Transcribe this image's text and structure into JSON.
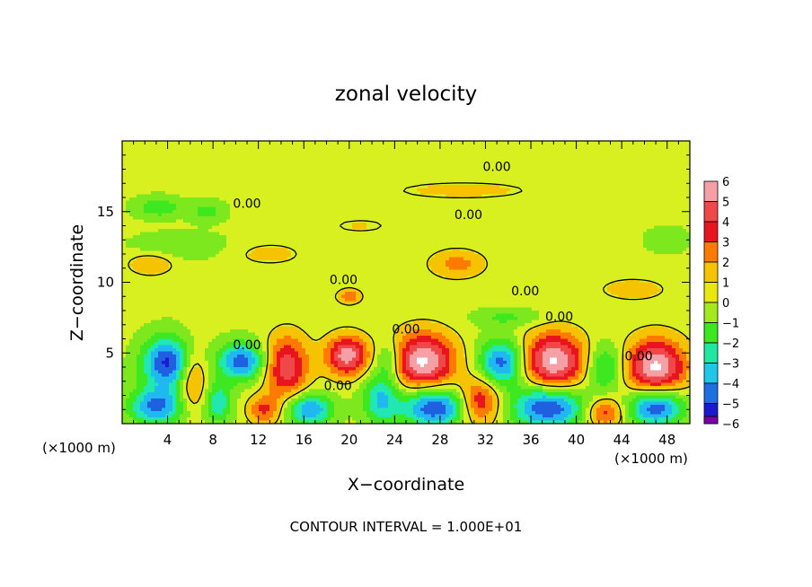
{
  "chart_data": {
    "type": "heatmap",
    "title": "zonal velocity",
    "xlabel": "X−coordinate",
    "ylabel": "Z−coordinate",
    "x_unit_left": "(×1000 m)",
    "x_unit_right": "(×1000 m)",
    "xlim": [
      0,
      50
    ],
    "ylim": [
      0,
      20
    ],
    "x_ticks": [
      4,
      8,
      12,
      16,
      20,
      24,
      28,
      32,
      36,
      40,
      44,
      48
    ],
    "x_tick_labels": [
      "4",
      "8",
      "12",
      "16",
      "20",
      "24",
      "28",
      "32",
      "36",
      "40",
      "44",
      "48"
    ],
    "y_ticks": [
      5,
      10,
      15
    ],
    "y_tick_labels": [
      "5",
      "10",
      "15"
    ],
    "colorbar": {
      "levels": [
        6,
        5,
        4,
        3,
        2,
        1,
        0,
        -1,
        -2,
        -3,
        -4,
        -5,
        -6
      ],
      "labels": [
        "6",
        "5",
        "4",
        "3",
        "2",
        "1",
        "0",
        "−1",
        "−2",
        "−3",
        "−4",
        "−5",
        "−6"
      ],
      "colors": [
        "#f4a0a6",
        "#f04848",
        "#e8141e",
        "#ff7a00",
        "#f5c300",
        "#e8e810",
        "#a4e81e",
        "#3ee820",
        "#20e8a0",
        "#20c8e8",
        "#1e70e0",
        "#1a1ad0",
        "#2000a0",
        "#7a00a8"
      ]
    },
    "contour_labels": [
      {
        "text": "0.00",
        "x": 33,
        "z": 18.2
      },
      {
        "text": "0.00",
        "x": 11,
        "z": 15.6
      },
      {
        "text": "0.00",
        "x": 30.5,
        "z": 14.8
      },
      {
        "text": "0.00",
        "x": 19.5,
        "z": 10.2
      },
      {
        "text": "0.00",
        "x": 35.5,
        "z": 9.4
      },
      {
        "text": "0.00",
        "x": 38.5,
        "z": 7.6
      },
      {
        "text": "0.00",
        "x": 25,
        "z": 6.7
      },
      {
        "text": "0.00",
        "x": 11,
        "z": 5.6
      },
      {
        "text": "0.00",
        "x": 19,
        "z": 2.7
      },
      {
        "text": "0.00",
        "x": 45.5,
        "z": 4.8
      }
    ],
    "features": [
      {
        "x": 4,
        "z": 4.3,
        "rx": 2.2,
        "rz": 1.8,
        "v": -5.5
      },
      {
        "x": 3,
        "z": 1.2,
        "rx": 2.4,
        "rz": 1.3,
        "v": -4.5
      },
      {
        "x": 6.2,
        "z": 3.2,
        "rx": 1.2,
        "rz": 2.2,
        "v": 3
      },
      {
        "x": 10.5,
        "z": 4.4,
        "rx": 2.0,
        "rz": 1.3,
        "v": -5
      },
      {
        "x": 14.5,
        "z": 4.0,
        "rx": 1.9,
        "rz": 2.2,
        "v": 4.5
      },
      {
        "x": 16.5,
        "z": 1.0,
        "rx": 2.0,
        "rz": 1.1,
        "v": -4.5
      },
      {
        "x": 19.8,
        "z": 4.8,
        "rx": 1.8,
        "rz": 1.4,
        "v": 5.5
      },
      {
        "x": 12.5,
        "z": 1.0,
        "rx": 1.4,
        "rz": 1.0,
        "v": 3
      },
      {
        "x": 22.8,
        "z": 1.8,
        "rx": 1.6,
        "rz": 1.8,
        "v": -3.5
      },
      {
        "x": 23.5,
        "z": 4.5,
        "rx": 1.2,
        "rz": 1.4,
        "v": -2.5
      },
      {
        "x": 26.5,
        "z": 4.4,
        "rx": 2.8,
        "rz": 2.0,
        "v": 6
      },
      {
        "x": 27.5,
        "z": 1.2,
        "rx": 2.8,
        "rz": 1.4,
        "v": -5.5
      },
      {
        "x": 33.5,
        "z": 4.3,
        "rx": 2.0,
        "rz": 1.6,
        "v": -5
      },
      {
        "x": 31.5,
        "z": 1.6,
        "rx": 1.8,
        "rz": 1.6,
        "v": 4
      },
      {
        "x": 38,
        "z": 4.4,
        "rx": 2.8,
        "rz": 2.0,
        "v": 6
      },
      {
        "x": 37.5,
        "z": 1.2,
        "rx": 3.2,
        "rz": 1.5,
        "v": -5.5
      },
      {
        "x": 42.5,
        "z": 4.0,
        "rx": 1.6,
        "rz": 1.6,
        "v": -3
      },
      {
        "x": 42.5,
        "z": 0.8,
        "rx": 1.6,
        "rz": 1.0,
        "v": 3.5
      },
      {
        "x": 47,
        "z": 4.0,
        "rx": 2.6,
        "rz": 2.0,
        "v": 6
      },
      {
        "x": 47,
        "z": 1.2,
        "rx": 2.4,
        "rz": 1.3,
        "v": -5.5
      },
      {
        "x": 8.5,
        "z": 1.5,
        "rx": 1.2,
        "rz": 1.5,
        "v": -3
      },
      {
        "x": 3.2,
        "z": 15.3,
        "rx": 2.0,
        "rz": 0.7,
        "v": -2.2
      },
      {
        "x": 7.5,
        "z": 15.0,
        "rx": 1.5,
        "rz": 0.7,
        "v": -1.8
      },
      {
        "x": 5,
        "z": 12.6,
        "rx": 4.0,
        "rz": 0.9,
        "v": -1.2
      },
      {
        "x": 2.5,
        "z": 11.3,
        "rx": 2.0,
        "rz": 0.8,
        "v": 1.8
      },
      {
        "x": 29.5,
        "z": 11.3,
        "rx": 2.4,
        "rz": 1.0,
        "v": 2.2
      },
      {
        "x": 20,
        "z": 9.0,
        "rx": 1.0,
        "rz": 0.5,
        "v": 2.8
      },
      {
        "x": 13,
        "z": 12.0,
        "rx": 3.0,
        "rz": 0.8,
        "v": 1.2
      },
      {
        "x": 34,
        "z": 7.5,
        "rx": 3.0,
        "rz": 0.6,
        "v": -1.5
      },
      {
        "x": 30,
        "z": 16.5,
        "rx": 8.0,
        "rz": 0.8,
        "v": 1.0
      },
      {
        "x": 45,
        "z": 9.5,
        "rx": 3.0,
        "rz": 0.8,
        "v": 1.4
      },
      {
        "x": 21,
        "z": 14.0,
        "rx": 4.0,
        "rz": 0.8,
        "v": 0.8
      },
      {
        "x": 48,
        "z": 13.0,
        "rx": 2.0,
        "rz": 1.0,
        "v": -0.8
      }
    ]
  },
  "footnote": "CONTOUR INTERVAL = 1.000E+01"
}
